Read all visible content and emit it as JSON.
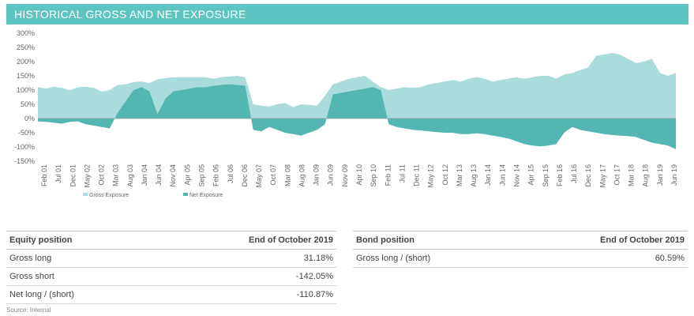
{
  "header": {
    "title": "HISTORICAL GROSS AND NET EXPOSURE"
  },
  "colors": {
    "banner": "#5ec4c3",
    "gross": "#a9dcda",
    "net": "#53b6b1"
  },
  "chart_data": {
    "type": "area",
    "ylim": [
      -150,
      300
    ],
    "yticks": [
      "300%",
      "250%",
      "200%",
      "150%",
      "100%",
      "50%",
      "0%",
      "-50%",
      "-100%",
      "-150%"
    ],
    "ytick_values": [
      300,
      250,
      200,
      150,
      100,
      50,
      0,
      -50,
      -100,
      -150
    ],
    "x_tick_labels": [
      "Feb 01",
      "Jul 01",
      "Dec 01",
      "May 02",
      "Oct 02",
      "Mar 03",
      "Aug 03",
      "Jan 04",
      "Jun 04",
      "Nov 04",
      "Apr 05",
      "Sep 05",
      "Feb 06",
      "Jul 06",
      "Dec 06",
      "May 07",
      "Oct 07",
      "Mar 08",
      "Aug 08",
      "Jan 09",
      "Jun 09",
      "Nov 09",
      "Apr 10",
      "Sep 10",
      "Feb 11",
      "Jul 11",
      "Dec 11",
      "May 12",
      "Oct 12",
      "Mar 13",
      "Aug 13",
      "Jan 14",
      "Jun 14",
      "Nov 14",
      "Apr 15",
      "Sep 15",
      "Feb 16",
      "Jul 16",
      "Dec 16",
      "May 17",
      "Oct 17",
      "Mar 18",
      "Aug 18",
      "Jan 19",
      "Jun 19"
    ],
    "series": [
      {
        "name": "Gross Exposure",
        "values": [
          110,
          105,
          112,
          108,
          100,
          110,
          112,
          108,
          95,
          100,
          118,
          120,
          128,
          130,
          125,
          138,
          142,
          145,
          145,
          145,
          145,
          145,
          140,
          145,
          148,
          150,
          145,
          50,
          45,
          42,
          50,
          55,
          40,
          50,
          48,
          45,
          80,
          120,
          130,
          140,
          145,
          150,
          130,
          110,
          100,
          105,
          110,
          108,
          110,
          120,
          125,
          130,
          135,
          130,
          140,
          145,
          140,
          130,
          135,
          140,
          145,
          140,
          145,
          150,
          150,
          140,
          155,
          160,
          170,
          180,
          220,
          225,
          230,
          225,
          210,
          195,
          200,
          210,
          160,
          150,
          160
        ]
      },
      {
        "name": "Net Exposure",
        "values": [
          -10,
          -12,
          -15,
          -18,
          -12,
          -10,
          -20,
          -25,
          -30,
          -35,
          20,
          60,
          100,
          110,
          95,
          15,
          70,
          95,
          100,
          105,
          110,
          110,
          115,
          118,
          120,
          118,
          115,
          -40,
          -45,
          -30,
          -40,
          -50,
          -55,
          -60,
          -50,
          -40,
          -20,
          85,
          90,
          95,
          100,
          105,
          110,
          100,
          -20,
          -30,
          -35,
          -40,
          -42,
          -45,
          -48,
          -50,
          -50,
          -55,
          -55,
          -52,
          -55,
          -60,
          -65,
          -70,
          -80,
          -90,
          -95,
          -98,
          -95,
          -90,
          -50,
          -30,
          -40,
          -45,
          -50,
          -55,
          -58,
          -60,
          -62,
          -65,
          -75,
          -85,
          -90,
          -95,
          -108
        ]
      }
    ],
    "legend": [
      "Gross Exposure",
      "Net Exposure"
    ]
  },
  "equity_table": {
    "headers": [
      "Equity position",
      "End of October 2019"
    ],
    "rows": [
      [
        "Gross long",
        "31.18%"
      ],
      [
        "Gross short",
        "-142.05%"
      ],
      [
        "Net long / (short)",
        "-110.87%"
      ]
    ]
  },
  "bond_table": {
    "headers": [
      "Bond position",
      "End of October 2019"
    ],
    "rows": [
      [
        "Gross long / (short)",
        "60.59%"
      ]
    ]
  },
  "source": "Source: Internal"
}
